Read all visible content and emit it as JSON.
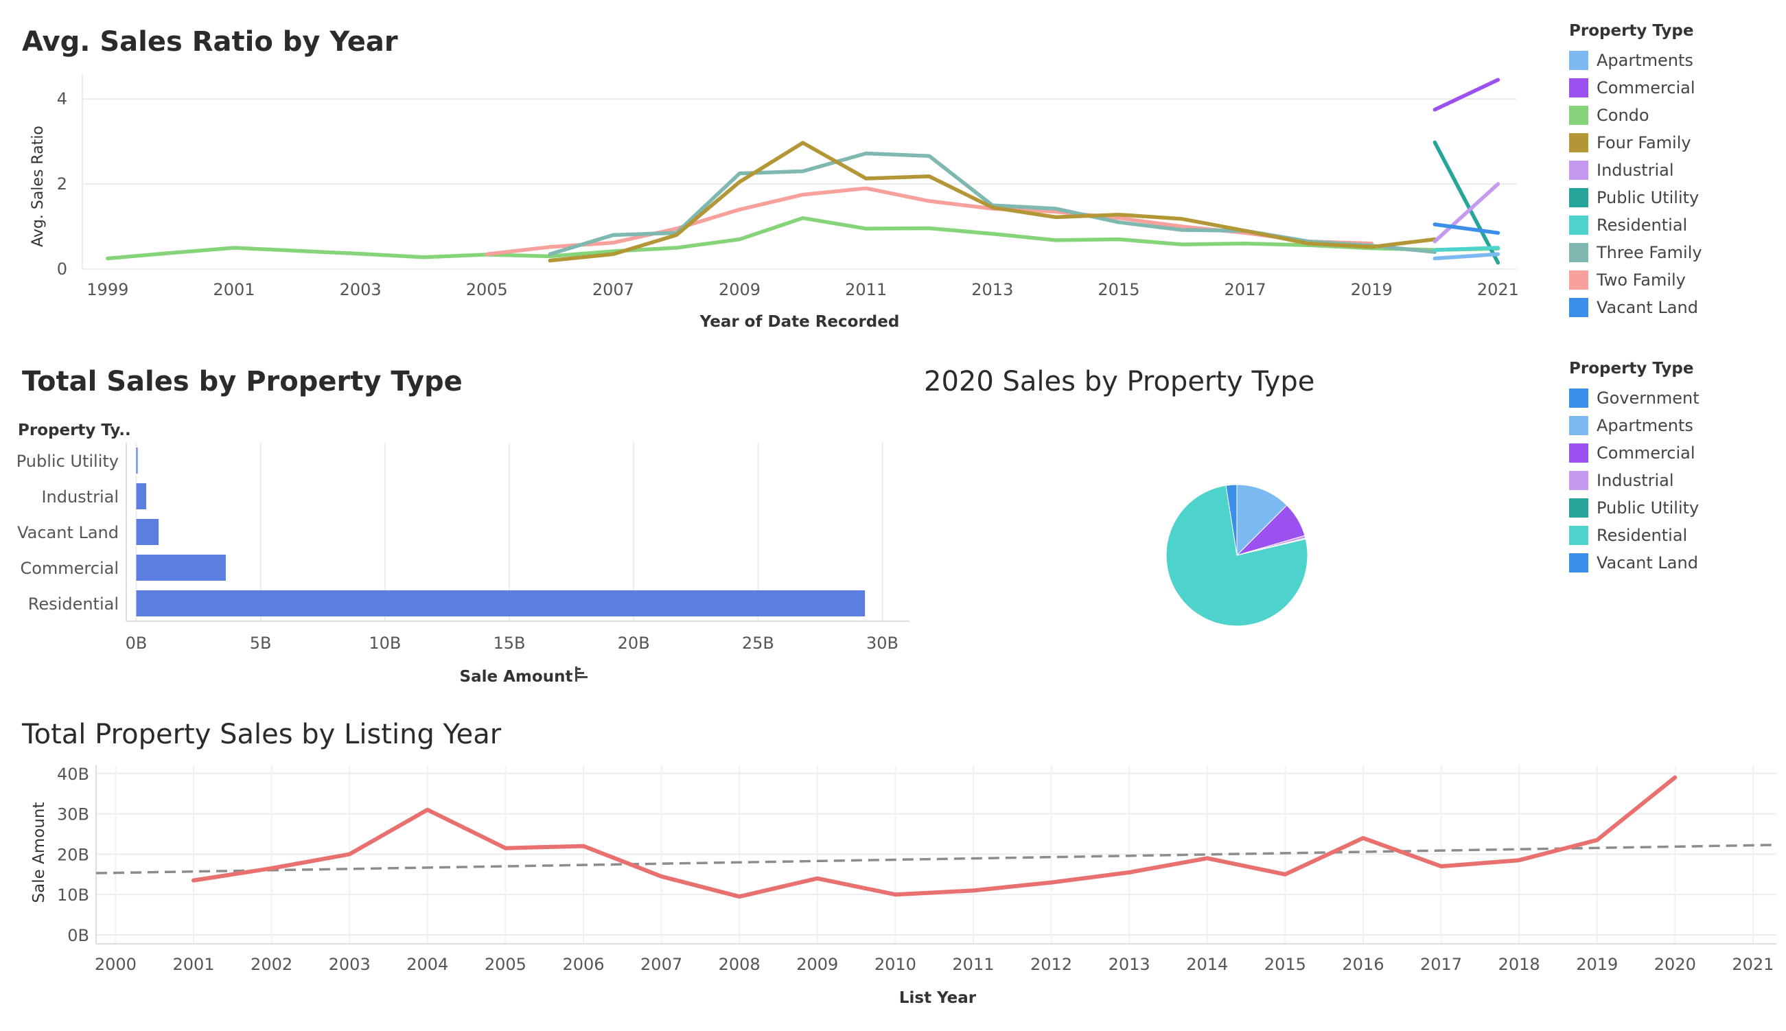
{
  "dashboard": {
    "title1": "Avg. Sales Ratio by Year",
    "title2": "Total Sales by Property Type",
    "title3": "2020 Sales by Property Type",
    "title4": "Total Property Sales by Listing Year"
  },
  "legend1": {
    "title": "Property Type",
    "items": [
      {
        "label": "Apartments",
        "color": "#7cb9f0"
      },
      {
        "label": "Commercial",
        "color": "#9b51f0"
      },
      {
        "label": "Condo",
        "color": "#86d47a"
      },
      {
        "label": "Four Family",
        "color": "#b39635"
      },
      {
        "label": "Industrial",
        "color": "#c39af0"
      },
      {
        "label": "Public Utility",
        "color": "#26a69a"
      },
      {
        "label": "Residential",
        "color": "#4dd3cb"
      },
      {
        "label": "Three Family",
        "color": "#7fb8b0"
      },
      {
        "label": "Two Family",
        "color": "#f7a09c"
      },
      {
        "label": "Vacant Land",
        "color": "#3b8fe8"
      }
    ]
  },
  "legend2": {
    "title": "Property Type",
    "items": [
      {
        "label": "Government",
        "color": "#3b8fe8"
      },
      {
        "label": "Apartments",
        "color": "#7cb9f0"
      },
      {
        "label": "Commercial",
        "color": "#9b51f0"
      },
      {
        "label": "Industrial",
        "color": "#c39af0"
      },
      {
        "label": "Public Utility",
        "color": "#26a69a"
      },
      {
        "label": "Residential",
        "color": "#4dd3cb"
      },
      {
        "label": "Vacant Land",
        "color": "#3b8fe8"
      }
    ]
  },
  "chart_data": [
    {
      "type": "line",
      "title": "Avg. Sales Ratio by Year",
      "xlabel": "Year of Date Recorded",
      "ylabel": "Avg. Sales Ratio",
      "xlim": [
        1998.6,
        2021.3
      ],
      "ylim": [
        0,
        4.6
      ],
      "xticks": [
        1999,
        2001,
        2003,
        2005,
        2007,
        2009,
        2011,
        2013,
        2015,
        2017,
        2019,
        2021
      ],
      "yticks": [
        0,
        2,
        4
      ],
      "grid": true,
      "legend": "right",
      "series": [
        {
          "name": "Condo",
          "color": "#86d47a",
          "x": [
            1999,
            2000,
            2001,
            2002,
            2003,
            2004,
            2005,
            2006,
            2007,
            2008,
            2009,
            2010,
            2011,
            2012,
            2013,
            2014,
            2015,
            2016,
            2017,
            2018,
            2019,
            2020,
            2021
          ],
          "y": [
            0.25,
            0.38,
            0.5,
            0.43,
            0.36,
            0.28,
            0.34,
            0.3,
            0.42,
            0.5,
            0.7,
            1.2,
            0.95,
            0.96,
            0.83,
            0.68,
            0.7,
            0.58,
            0.6,
            0.56,
            0.49,
            0.45,
            0.48
          ]
        },
        {
          "name": "Two Family",
          "color": "#f7a09c",
          "x": [
            2005,
            2006,
            2007,
            2008,
            2009,
            2010,
            2011,
            2012,
            2013,
            2014,
            2015,
            2016,
            2017,
            2018,
            2019
          ],
          "y": [
            0.35,
            0.52,
            0.62,
            0.95,
            1.4,
            1.75,
            1.9,
            1.6,
            1.42,
            1.35,
            1.2,
            1.0,
            0.85,
            0.65,
            0.6
          ]
        },
        {
          "name": "Three Family",
          "color": "#7fb8b0",
          "x": [
            2006,
            2007,
            2008,
            2009,
            2010,
            2011,
            2012,
            2013,
            2014,
            2015,
            2016,
            2017,
            2018,
            2019,
            2020
          ],
          "y": [
            0.35,
            0.8,
            0.85,
            2.25,
            2.3,
            2.72,
            2.66,
            1.5,
            1.42,
            1.1,
            0.92,
            0.9,
            0.65,
            0.55,
            0.4
          ]
        },
        {
          "name": "Four Family",
          "color": "#b39635",
          "x": [
            2006,
            2007,
            2008,
            2009,
            2010,
            2011,
            2012,
            2013,
            2014,
            2015,
            2016,
            2017,
            2018,
            2019,
            2020
          ],
          "y": [
            0.2,
            0.35,
            0.8,
            2.05,
            2.97,
            2.13,
            2.18,
            1.45,
            1.22,
            1.28,
            1.18,
            0.9,
            0.6,
            0.52,
            0.7
          ]
        },
        {
          "name": "Commercial",
          "color": "#9b51f0",
          "x": [
            2020,
            2021
          ],
          "y": [
            3.75,
            4.45
          ]
        },
        {
          "name": "Public Utility",
          "color": "#26a69a",
          "x": [
            2020,
            2021
          ],
          "y": [
            2.98,
            0.15
          ]
        },
        {
          "name": "Industrial",
          "color": "#c39af0",
          "x": [
            2020,
            2021
          ],
          "y": [
            0.65,
            2.0
          ]
        },
        {
          "name": "Vacant Land",
          "color": "#3b8fe8",
          "x": [
            2020,
            2021
          ],
          "y": [
            1.05,
            0.85
          ]
        },
        {
          "name": "Residential",
          "color": "#4dd3cb",
          "x": [
            2020,
            2021
          ],
          "y": [
            0.45,
            0.5
          ]
        },
        {
          "name": "Apartments",
          "color": "#7cb9f0",
          "x": [
            2020,
            2021
          ],
          "y": [
            0.25,
            0.35
          ]
        }
      ]
    },
    {
      "type": "bar",
      "orientation": "horizontal",
      "title": "Total Sales by Property Type",
      "category_header": "Property Ty..",
      "categories": [
        "Public Utility",
        "Industrial",
        "Vacant Land",
        "Commercial",
        "Residential"
      ],
      "values": [
        0.05,
        0.4,
        0.9,
        3.6,
        29.3
      ],
      "value_unit": "B",
      "xlabel": "Sale Amount",
      "xlim": [
        -0.4,
        30.4
      ],
      "xticks": [
        0,
        5,
        10,
        15,
        20,
        25,
        30
      ],
      "xtick_labels": [
        "0B",
        "5B",
        "10B",
        "15B",
        "20B",
        "25B",
        "30B"
      ],
      "color": "#5b7fe0",
      "grid": true
    },
    {
      "type": "pie",
      "title": "2020 Sales by Property Type",
      "legend": "right",
      "slices": [
        {
          "label": "Government",
          "value": 2.5,
          "color": "#3b8fe8"
        },
        {
          "label": "Apartments",
          "value": 12.5,
          "color": "#7cb9f0"
        },
        {
          "label": "Commercial",
          "value": 8.0,
          "color": "#9b51f0"
        },
        {
          "label": "Industrial",
          "value": 0.6,
          "color": "#c39af0"
        },
        {
          "label": "Public Utility",
          "value": 0.2,
          "color": "#26a69a"
        },
        {
          "label": "Residential",
          "value": 76.2,
          "color": "#4dd3cb"
        }
      ]
    },
    {
      "type": "line",
      "title": "Total Property Sales by Listing Year",
      "xlabel": "List Year",
      "ylabel": "Sale Amount",
      "xlim": [
        1999.75,
        2021.3
      ],
      "ylim": [
        -2.2,
        42
      ],
      "xticks": [
        2000,
        2001,
        2002,
        2003,
        2004,
        2005,
        2006,
        2007,
        2008,
        2009,
        2010,
        2011,
        2012,
        2013,
        2014,
        2015,
        2016,
        2017,
        2018,
        2019,
        2020,
        2021
      ],
      "yticks": [
        0,
        10,
        20,
        30,
        40
      ],
      "ytick_labels": [
        "0B",
        "10B",
        "20B",
        "30B",
        "40B"
      ],
      "grid": true,
      "series": [
        {
          "color": "#e8706e",
          "x": [
            2001,
            2002,
            2003,
            2004,
            2005,
            2006,
            2007,
            2008,
            2009,
            2010,
            2011,
            2012,
            2013,
            2014,
            2015,
            2016,
            2017,
            2018,
            2019,
            2020
          ],
          "y": [
            13.5,
            16.5,
            20.0,
            31.0,
            21.5,
            22.0,
            14.5,
            9.5,
            14.0,
            10.0,
            11.0,
            13.0,
            15.5,
            19.0,
            15.0,
            24.0,
            17.0,
            18.5,
            23.5,
            39.0
          ]
        }
      ],
      "trend_line": {
        "color": "#8c8c8c",
        "x": [
          1999.75,
          2021.3
        ],
        "y": [
          15.3,
          22.3
        ]
      }
    }
  ]
}
